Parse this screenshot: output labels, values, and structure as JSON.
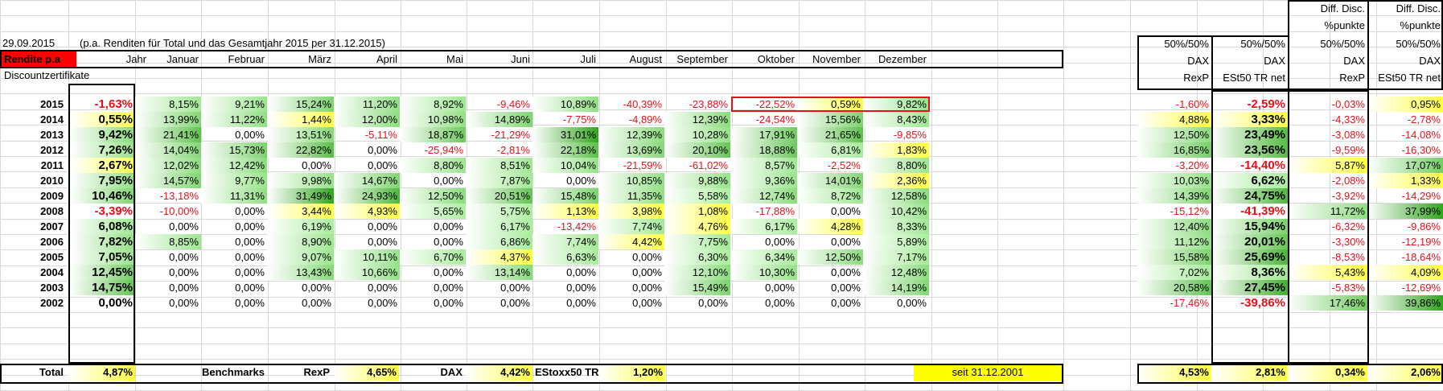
{
  "header": {
    "date": "29.09.2015",
    "note": "(p.a. Renditen für Total und das Gesamtjahr 2015 per 31.12.2015)",
    "rendite_label": "Rendite p.a",
    "discount_label": "Discountzertifikate"
  },
  "columns": [
    "Jahr",
    "Januar",
    "Februar",
    "März",
    "April",
    "Mai",
    "Juni",
    "Juli",
    "August",
    "September",
    "Oktober",
    "November",
    "Dezember"
  ],
  "right_headers": {
    "diff_title": [
      "Diff. Disc.",
      "%punkte"
    ],
    "c1": [
      "50%/50%",
      "DAX",
      "RexP"
    ],
    "c2": [
      "50%/50%",
      "DAX",
      "ESt50 TR net"
    ],
    "c3": [
      "50%/50%",
      "DAX",
      "RexP"
    ],
    "c4": [
      "50%/50%",
      "DAX",
      "ESt50 TR net"
    ]
  },
  "rows": [
    {
      "year": "2015",
      "cells": [
        "-1,63%",
        "8,15%",
        "9,21%",
        "15,24%",
        "11,20%",
        "8,92%",
        "-9,46%",
        "10,89%",
        "-40,39%",
        "-23,88%",
        "-22,52%",
        "0,59%",
        "9,82%"
      ],
      "right": [
        "-1,60%",
        "-2,59%",
        "-0,03%",
        "0,95%"
      ]
    },
    {
      "year": "2014",
      "cells": [
        "0,55%",
        "13,99%",
        "11,22%",
        "1,44%",
        "12,00%",
        "10,98%",
        "14,89%",
        "-7,75%",
        "-4,89%",
        "12,39%",
        "-24,54%",
        "15,56%",
        "8,43%"
      ],
      "right": [
        "4,88%",
        "3,33%",
        "-4,33%",
        "-2,78%"
      ]
    },
    {
      "year": "2013",
      "cells": [
        "9,42%",
        "21,41%",
        "0,00%",
        "13,51%",
        "-5,11%",
        "18,87%",
        "-21,29%",
        "31,01%",
        "12,39%",
        "10,28%",
        "17,91%",
        "21,65%",
        "-9,85%"
      ],
      "right": [
        "12,50%",
        "23,49%",
        "-3,08%",
        "-14,08%"
      ]
    },
    {
      "year": "2012",
      "cells": [
        "7,26%",
        "14,04%",
        "15,73%",
        "22,82%",
        "0,00%",
        "-25,94%",
        "-2,81%",
        "22,18%",
        "13,69%",
        "20,10%",
        "18,88%",
        "6,81%",
        "1,83%"
      ],
      "right": [
        "16,85%",
        "23,56%",
        "-9,59%",
        "-16,30%"
      ]
    },
    {
      "year": "2011",
      "cells": [
        "2,67%",
        "12,02%",
        "12,42%",
        "0,00%",
        "0,00%",
        "8,80%",
        "8,51%",
        "10,04%",
        "-21,59%",
        "-61,02%",
        "8,57%",
        "-2,52%",
        "8,80%"
      ],
      "right": [
        "-3,20%",
        "-14,40%",
        "5,87%",
        "17,07%"
      ]
    },
    {
      "year": "2010",
      "cells": [
        "7,95%",
        "14,57%",
        "9,77%",
        "9,98%",
        "14,67%",
        "0,00%",
        "7,87%",
        "0,00%",
        "10,85%",
        "9,88%",
        "9,36%",
        "14,01%",
        "2,36%"
      ],
      "right": [
        "10,03%",
        "6,62%",
        "-2,08%",
        "1,33%"
      ]
    },
    {
      "year": "2009",
      "cells": [
        "10,46%",
        "-13,18%",
        "11,31%",
        "31,49%",
        "24,93%",
        "12,50%",
        "20,51%",
        "15,48%",
        "11,35%",
        "5,58%",
        "12,74%",
        "8,72%",
        "12,58%"
      ],
      "right": [
        "14,39%",
        "24,75%",
        "-3,92%",
        "-14,29%"
      ]
    },
    {
      "year": "2008",
      "cells": [
        "-3,39%",
        "-10,00%",
        "0,00%",
        "3,44%",
        "4,93%",
        "5,65%",
        "5,75%",
        "1,13%",
        "3,98%",
        "1,08%",
        "-17,88%",
        "0,00%",
        "10,42%"
      ],
      "right": [
        "-15,12%",
        "-41,39%",
        "11,72%",
        "37,99%"
      ]
    },
    {
      "year": "2007",
      "cells": [
        "6,08%",
        "0,00%",
        "0,00%",
        "6,19%",
        "0,00%",
        "0,00%",
        "6,17%",
        "-13,42%",
        "7,74%",
        "4,76%",
        "6,17%",
        "4,28%",
        "8,33%"
      ],
      "right": [
        "12,40%",
        "15,94%",
        "-6,32%",
        "-9,86%"
      ]
    },
    {
      "year": "2006",
      "cells": [
        "7,82%",
        "8,85%",
        "0,00%",
        "8,90%",
        "0,00%",
        "0,00%",
        "6,86%",
        "7,74%",
        "4,42%",
        "7,75%",
        "0,00%",
        "0,00%",
        "5,89%"
      ],
      "right": [
        "11,12%",
        "20,01%",
        "-3,30%",
        "-12,19%"
      ]
    },
    {
      "year": "2005",
      "cells": [
        "7,05%",
        "0,00%",
        "0,00%",
        "9,07%",
        "10,11%",
        "6,70%",
        "4,37%",
        "6,63%",
        "0,00%",
        "6,30%",
        "6,34%",
        "12,50%",
        "7,17%"
      ],
      "right": [
        "15,58%",
        "25,69%",
        "-8,53%",
        "-18,64%"
      ]
    },
    {
      "year": "2004",
      "cells": [
        "12,45%",
        "0,00%",
        "0,00%",
        "13,43%",
        "10,66%",
        "0,00%",
        "13,14%",
        "0,00%",
        "0,00%",
        "12,10%",
        "10,30%",
        "0,00%",
        "12,48%"
      ],
      "right": [
        "7,02%",
        "8,36%",
        "5,43%",
        "4,09%"
      ]
    },
    {
      "year": "2003",
      "cells": [
        "14,75%",
        "0,00%",
        "0,00%",
        "0,00%",
        "0,00%",
        "0,00%",
        "0,00%",
        "0,00%",
        "0,00%",
        "15,49%",
        "0,00%",
        "0,00%",
        "14,19%"
      ],
      "right": [
        "20,58%",
        "27,45%",
        "-5,83%",
        "-12,69%"
      ]
    },
    {
      "year": "2002",
      "cells": [
        "0,00%",
        "0,00%",
        "0,00%",
        "0,00%",
        "0,00%",
        "0,00%",
        "0,00%",
        "0,00%",
        "0,00%",
        "0,00%",
        "0,00%",
        "0,00%",
        "0,00%"
      ],
      "right": [
        "-17,46%",
        "-39,86%",
        "17,46%",
        "39,86%"
      ]
    }
  ],
  "total_row": {
    "label": "Total",
    "jahr": "4,87%",
    "benchmarks_label": "Benchmarks",
    "rexp_label": "RexP",
    "rexp_value": "4,65%",
    "dax_label": "DAX",
    "dax_value": "4,42%",
    "estoxx_label": "EStoxx50 TR",
    "estoxx_value": "1,20%",
    "since_label": "seit 31.12.2001",
    "right": [
      "4,53%",
      "2,81%",
      "0,34%",
      "2,06%"
    ]
  },
  "colors": {
    "red_header": "#ff0000",
    "negative_text": "#e8101a",
    "yellow": "#ffff00",
    "green_light": "#ffffff",
    "green_dark": "#2f9e2f"
  }
}
